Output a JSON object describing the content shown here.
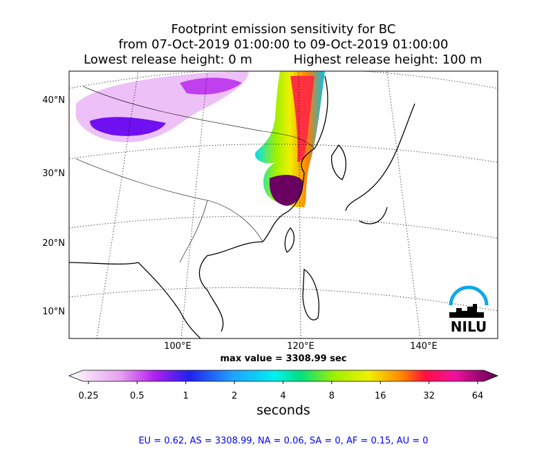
{
  "title": {
    "line1": "Footprint emission sensitivity for BC",
    "line2": "from 07-Oct-2019 01:00:00 to 09-Oct-2019 01:00:00",
    "lowest": "Lowest release height: 0 m",
    "highest": "Highest release height: 100 m"
  },
  "map": {
    "lat_labels": [
      "40°N",
      "30°N",
      "20°N",
      "10°N"
    ],
    "lon_labels": [
      "100°E",
      "120°E",
      "140°E"
    ],
    "max_value": "max value = 3308.99 sec",
    "logo": "NILU"
  },
  "colorbar": {
    "ticks": [
      "0.25",
      "0.5",
      "1",
      "2",
      "4",
      "8",
      "16",
      "32",
      "64"
    ],
    "label": "seconds"
  },
  "footer": "EU = 0.62,  AS = 3308.99,  NA = 0.06,  SA = 0,  AF = 0.15,  AU = 0"
}
